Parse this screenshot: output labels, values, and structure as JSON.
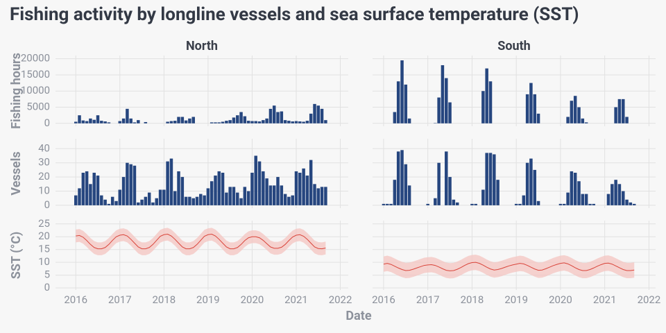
{
  "chart_data": {
    "type": "facet",
    "title": "Fishing activity by longline vessels and sea surface temperature (SST)",
    "x_label": "Date",
    "x": [
      2016,
      2016.083,
      2016.167,
      2016.25,
      2016.333,
      2016.417,
      2016.5,
      2016.583,
      2016.667,
      2016.75,
      2016.833,
      2016.917,
      2017,
      2017.083,
      2017.167,
      2017.25,
      2017.333,
      2017.417,
      2017.5,
      2017.583,
      2017.667,
      2017.75,
      2017.833,
      2017.917,
      2018,
      2018.083,
      2018.167,
      2018.25,
      2018.333,
      2018.417,
      2018.5,
      2018.583,
      2018.667,
      2018.75,
      2018.833,
      2018.917,
      2019,
      2019.083,
      2019.167,
      2019.25,
      2019.333,
      2019.417,
      2019.5,
      2019.583,
      2019.667,
      2019.75,
      2019.833,
      2019.917,
      2020,
      2020.083,
      2020.167,
      2020.25,
      2020.333,
      2020.417,
      2020.5,
      2020.583,
      2020.667,
      2020.75,
      2020.833,
      2020.917,
      2021,
      2021.083,
      2021.167,
      2021.25,
      2021.333,
      2021.417,
      2021.5,
      2021.583,
      2021.667
    ],
    "xticks": [
      2016,
      2017,
      2018,
      2019,
      2020,
      2021,
      2022
    ],
    "columns": [
      {
        "name": "North",
        "xlim": [
          2015.54,
          2022.18
        ]
      },
      {
        "name": "South",
        "xlim": [
          2015.75,
          2022.15
        ]
      }
    ],
    "rows": [
      {
        "label": "Fishing hours",
        "type": "bar",
        "color": "#26467f",
        "ylim": [
          -900,
          21000
        ],
        "yticks": [
          0,
          5000,
          10000,
          15000,
          20000
        ],
        "panels": [
          {
            "values": [
              500,
              2500,
              900,
              700,
              1500,
              1100,
              2500,
              800,
              600,
              300,
              0,
              0,
              700,
              1500,
              4500,
              1500,
              300,
              1000,
              0,
              400,
              0,
              0,
              0,
              0,
              0,
              500,
              700,
              800,
              2000,
              2000,
              900,
              1500,
              2000,
              0,
              0,
              0,
              0,
              300,
              300,
              300,
              500,
              800,
              1000,
              1800,
              2500,
              3500,
              2200,
              800,
              700,
              700,
              600,
              1000,
              1500,
              4500,
              5500,
              3500,
              3700,
              1000,
              800,
              600,
              700,
              600,
              500,
              800,
              3000,
              6000,
              5500,
              4500,
              1000
            ]
          },
          {
            "values": [
              0,
              0,
              0,
              3500,
              13000,
              19500,
              12000,
              1500,
              0,
              0,
              0,
              0,
              0,
              0,
              100,
              8000,
              18000,
              14000,
              6500,
              0,
              0,
              0,
              0,
              0,
              0,
              0,
              0,
              10000,
              17000,
              13000,
              0,
              0,
              0,
              0,
              0,
              0,
              0,
              0,
              0,
              9000,
              12500,
              9000,
              3000,
              0,
              0,
              0,
              0,
              0,
              0,
              0,
              2000,
              7000,
              8500,
              5000,
              1500,
              300,
              0,
              0,
              0,
              0,
              0,
              0,
              0,
              5000,
              7500,
              7500,
              2000,
              0,
              0
            ]
          }
        ]
      },
      {
        "label": "Vessels",
        "type": "bar",
        "color": "#26467f",
        "ylim": [
          -2,
          47
        ],
        "yticks": [
          0,
          10,
          20,
          30,
          40
        ],
        "panels": [
          {
            "values": [
              7,
              12,
              23,
              24,
              15,
              23,
              21,
              7,
              4,
              1,
              6,
              3,
              11,
              20,
              30,
              29,
              28,
              2,
              4,
              6,
              9,
              2,
              5,
              11,
              11,
              31,
              33,
              10,
              24,
              20,
              6,
              6,
              5,
              6,
              8,
              7,
              12,
              17,
              21,
              24,
              23,
              9,
              13,
              13,
              9,
              5,
              13,
              10,
              23,
              35,
              31,
              24,
              19,
              14,
              14,
              20,
              14,
              8,
              6,
              7,
              24,
              23,
              26,
              21,
              32,
              15,
              12,
              13,
              13
            ]
          },
          {
            "values": [
              1,
              1,
              1,
              18,
              38,
              39,
              29,
              14,
              0,
              0,
              0,
              0,
              1,
              0,
              5,
              30,
              0,
              38,
              20,
              4,
              2,
              0,
              0,
              0,
              1,
              1,
              0,
              11,
              37,
              37,
              36,
              18,
              0,
              0,
              0,
              0,
              1,
              1,
              7,
              30,
              33,
              25,
              3,
              0,
              0,
              0,
              0,
              0,
              1,
              1,
              9,
              24,
              23,
              17,
              8,
              8,
              1,
              1,
              0,
              0,
              0,
              8,
              15,
              18,
              15,
              10,
              4,
              2,
              1
            ]
          }
        ]
      },
      {
        "label": "SST (°C)",
        "type": "line",
        "color": "#d9443a",
        "band_color": "#f4c7c3",
        "ylim": [
          -0.8,
          26.3
        ],
        "yticks": [
          0,
          5,
          10,
          15,
          20,
          25
        ],
        "panels": [
          {
            "error": 2.5,
            "values": [
              20.3,
              20.5,
              19.8,
              18.5,
              17,
              15.8,
              15.3,
              15.3,
              15.8,
              17,
              18.6,
              20,
              20.6,
              20.8,
              20.3,
              19,
              17.5,
              16,
              15.3,
              15.3,
              15.8,
              17,
              18.6,
              20.2,
              20.8,
              21,
              20.3,
              19,
              17.5,
              16,
              15.3,
              15.3,
              15.8,
              17,
              18.6,
              20.2,
              20.8,
              21,
              20.3,
              19,
              17.5,
              16,
              15.3,
              15.3,
              15.8,
              17,
              18.5,
              19.6,
              20,
              20,
              19.6,
              18.6,
              17.3,
              16,
              15.5,
              15.5,
              15.9,
              17,
              18.5,
              19.9,
              20.6,
              20.8,
              20.2,
              19,
              17.5,
              16,
              15.4,
              15.3,
              15.6
            ]
          },
          {
            "error": 3,
            "values": [
              9.3,
              9.6,
              9.2,
              8.5,
              7.8,
              7.2,
              6.8,
              6.9,
              7.3,
              7.8,
              8.3,
              8.8,
              9,
              9.1,
              8.8,
              8.2,
              7.5,
              6.9,
              6.7,
              6.8,
              7.3,
              8,
              8.8,
              9.5,
              9.9,
              10,
              9.6,
              8.9,
              8.1,
              7.4,
              7,
              7.2,
              7.6,
              8.1,
              8.6,
              9,
              9.3,
              9.6,
              9.4,
              8.8,
              8.1,
              7.4,
              6.9,
              7,
              7.5,
              8.1,
              8.7,
              9.2,
              9.6,
              9.8,
              9.4,
              8.7,
              7.9,
              7.2,
              6.8,
              6.8,
              7.2,
              7.8,
              8.5,
              9.1,
              9.6,
              9.7,
              9.3,
              8.6,
              7.9,
              7.2,
              6.8,
              6.8,
              7
            ]
          }
        ]
      }
    ]
  }
}
